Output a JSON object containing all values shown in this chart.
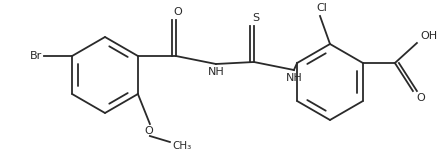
{
  "bg_color": "#ffffff",
  "line_color": "#2a2a2a",
  "line_width": 1.3,
  "font_size": 8.0,
  "figsize": [
    4.48,
    1.57
  ],
  "dpi": 100,
  "xlim": [
    0,
    448
  ],
  "ylim": [
    0,
    157
  ]
}
